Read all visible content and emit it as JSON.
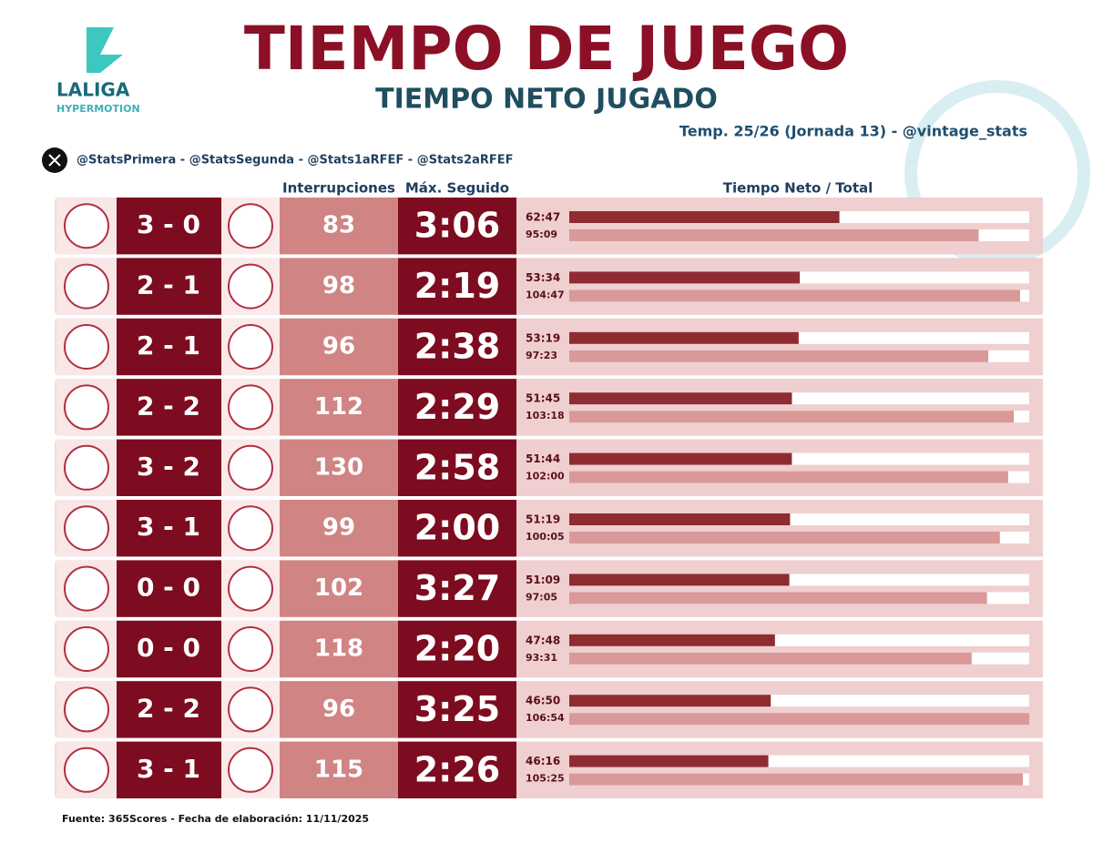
{
  "logo": {
    "brand": "LALIGA",
    "sub": "HYPERMOTION"
  },
  "header": {
    "title": "TIEMPO DE JUEGO",
    "subtitle": "TIEMPO NETO JUGADO",
    "season": "Temp. 25/26 (Jornada 13) - @vintage_stats",
    "social": "@StatsPrimera - @StatsSegunda - @Stats1aRFEF - @Stats2aRFEF"
  },
  "columns": {
    "interruptions": "Interrupciones",
    "max_streak": "Máx. Seguido",
    "net_total": "Tiempo Neto / Total"
  },
  "rows": [
    {
      "score": "3 - 0",
      "interruptions": 83,
      "max_streak": "3:06",
      "net": "62:47",
      "total": "95:09"
    },
    {
      "score": "2 - 1",
      "interruptions": 98,
      "max_streak": "2:19",
      "net": "53:34",
      "total": "104:47"
    },
    {
      "score": "2 - 1",
      "interruptions": 96,
      "max_streak": "2:38",
      "net": "53:19",
      "total": "97:23"
    },
    {
      "score": "2 - 2",
      "interruptions": 112,
      "max_streak": "2:29",
      "net": "51:45",
      "total": "103:18"
    },
    {
      "score": "3 - 2",
      "interruptions": 130,
      "max_streak": "2:58",
      "net": "51:44",
      "total": "102:00"
    },
    {
      "score": "3 - 1",
      "interruptions": 99,
      "max_streak": "2:00",
      "net": "51:19",
      "total": "100:05"
    },
    {
      "score": "0 - 0",
      "interruptions": 102,
      "max_streak": "3:27",
      "net": "51:09",
      "total": "97:05"
    },
    {
      "score": "0 - 0",
      "interruptions": 118,
      "max_streak": "2:20",
      "net": "47:48",
      "total": "93:31"
    },
    {
      "score": "2 - 2",
      "interruptions": 96,
      "max_streak": "3:25",
      "net": "46:50",
      "total": "106:54"
    },
    {
      "score": "3 - 1",
      "interruptions": 115,
      "max_streak": "2:26",
      "net": "46:16",
      "total": "105:25"
    }
  ],
  "footer": "Fuente: 365Scores - Fecha de elaboración: 11/11/2025"
}
